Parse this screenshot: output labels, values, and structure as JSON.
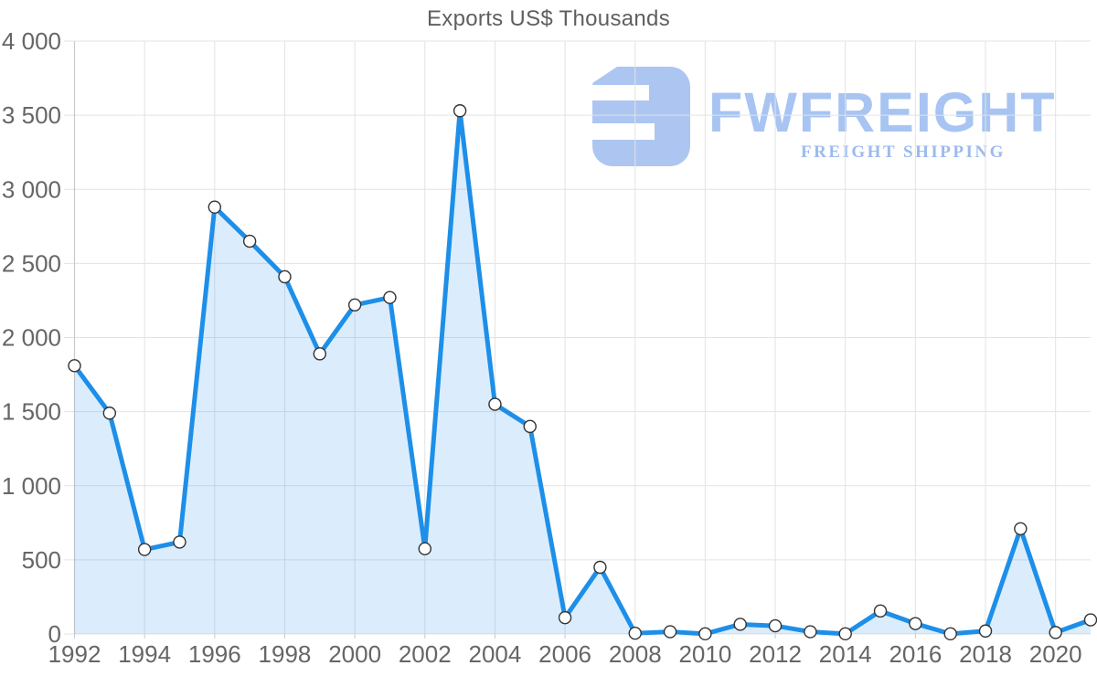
{
  "watermark": {
    "brand": "FWFREIGHT",
    "tagline": "FREIGHT SHIPPING"
  },
  "colors": {
    "line": "#1e8fe8",
    "area_fill": "rgba(30,144,235,0.16)",
    "marker_fill": "#ffffff",
    "marker_stroke": "#333333",
    "grid": "#e3e3e3",
    "axis": "#c9c9c9",
    "tick_label": "#666666",
    "title": "#5f5f5f",
    "logo": "#adc6f1"
  },
  "chart_data": {
    "type": "area",
    "title": "Exports US$ Thousands",
    "xlabel": "",
    "ylabel": "",
    "x": [
      1992,
      1993,
      1994,
      1995,
      1996,
      1997,
      1998,
      1999,
      2000,
      2001,
      2002,
      2003,
      2004,
      2005,
      2006,
      2007,
      2008,
      2009,
      2010,
      2011,
      2012,
      2013,
      2014,
      2015,
      2016,
      2017,
      2018,
      2019,
      2020,
      2021
    ],
    "values": [
      1810,
      1490,
      570,
      620,
      2880,
      2650,
      2410,
      1890,
      2220,
      2270,
      575,
      3530,
      1550,
      1400,
      110,
      450,
      5,
      15,
      1,
      65,
      55,
      15,
      1,
      155,
      70,
      1,
      20,
      710,
      10,
      95
    ],
    "ylim": [
      0,
      4000
    ],
    "y_ticks": [
      0,
      500,
      1000,
      1500,
      2000,
      2500,
      3000,
      3500,
      4000
    ],
    "y_tick_labels": [
      "0",
      "500",
      "1 000",
      "1 500",
      "2 000",
      "2 500",
      "3 000",
      "3 500",
      "4 000"
    ],
    "x_ticks": [
      1992,
      1994,
      1996,
      1998,
      2000,
      2002,
      2004,
      2006,
      2008,
      2010,
      2012,
      2014,
      2016,
      2018,
      2020
    ],
    "grid": true,
    "legend": false
  }
}
